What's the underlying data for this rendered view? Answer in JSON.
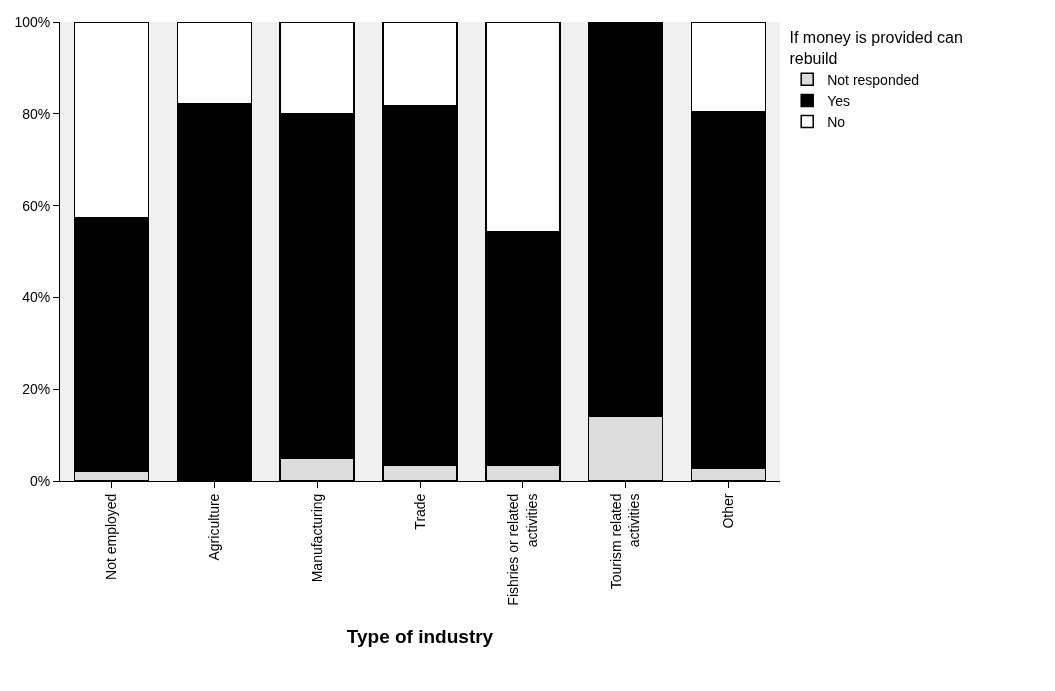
{
  "chart_data": {
    "type": "bar",
    "stacked": true,
    "xlabel": "Type of industry",
    "legend_title": "If money is provided can rebuild",
    "legend": "top right",
    "grid": false,
    "categories": [
      "Not employed",
      "Agriculture",
      "Manufacturing",
      "Trade",
      "Fishries or related activities",
      "Tourism related activities",
      "Other"
    ],
    "series": [
      {
        "name": "Not responded",
        "color": "#dcdcdc",
        "values": [
          2.2,
          0,
          4.9,
          3.4,
          3.4,
          14.1,
          2.7
        ]
      },
      {
        "name": "Yes",
        "color": "#000000",
        "values": [
          55.1,
          82.1,
          75.2,
          78.3,
          51.0,
          85.9,
          77.8
        ]
      },
      {
        "name": "No",
        "color": "#ffffff",
        "values": [
          42.7,
          17.9,
          19.9,
          18.3,
          45.6,
          0,
          19.5
        ]
      }
    ],
    "ylim": [
      0,
      100
    ],
    "yticks": [
      {
        "value": 0,
        "label": "0%"
      },
      {
        "value": 20,
        "label": "20%"
      },
      {
        "value": 40,
        "label": "40%"
      },
      {
        "value": 60,
        "label": "60%"
      },
      {
        "value": 80,
        "label": "80%"
      },
      {
        "value": 100,
        "label": "100%"
      }
    ]
  }
}
